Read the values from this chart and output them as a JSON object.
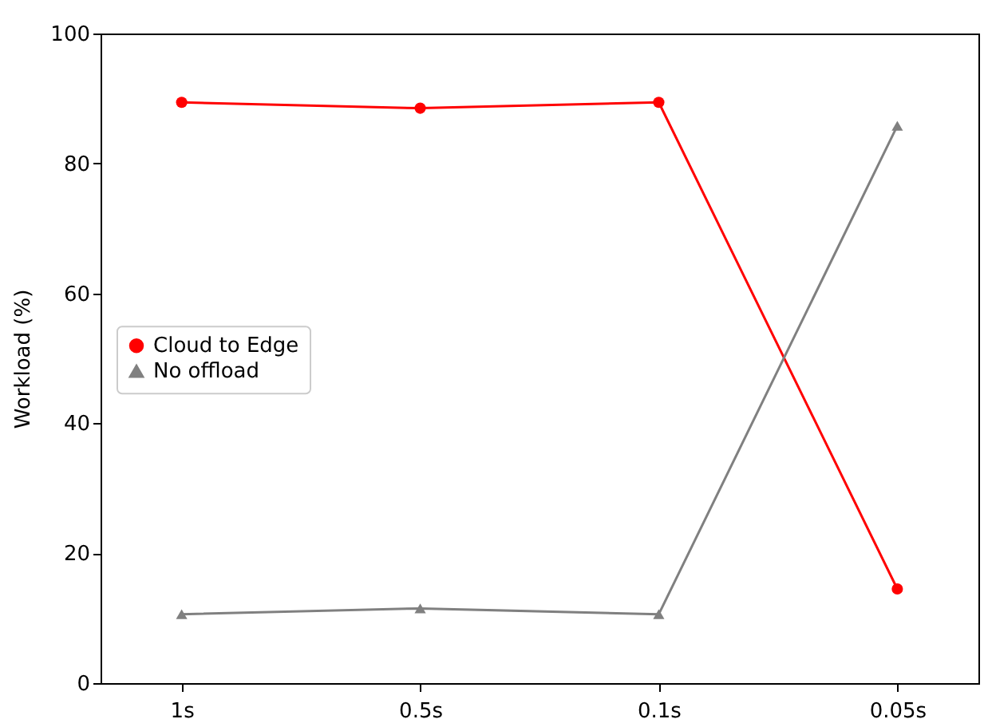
{
  "chart_data": {
    "type": "line",
    "ylabel": "Workload (%)",
    "categories": [
      "1s",
      "0.5s",
      "0.1s",
      "0.05s"
    ],
    "ylim": [
      0,
      100
    ],
    "yticks": [
      0,
      20,
      40,
      60,
      80,
      100
    ],
    "grid": false,
    "legend": "left",
    "series": [
      {
        "name": "Cloud to Edge",
        "color": "#ff0000",
        "marker": "circle",
        "values": [
          89.4,
          88.5,
          89.4,
          14.5
        ]
      },
      {
        "name": "No offload",
        "color": "#808080",
        "marker": "triangle",
        "values": [
          10.6,
          11.5,
          10.6,
          85.8
        ]
      }
    ]
  }
}
